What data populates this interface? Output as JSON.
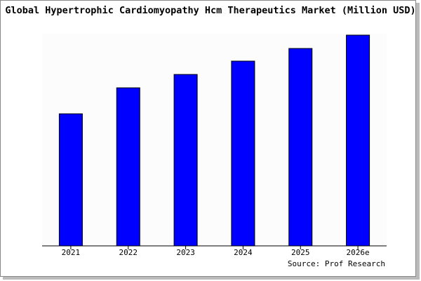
{
  "chart_data": {
    "type": "bar",
    "title": "Global Hypertrophic Cardiomyopathy Hcm Therapeutics Market (Million USD)",
    "categories": [
      "2021",
      "2022",
      "2023",
      "2024",
      "2025",
      "2026e"
    ],
    "values": [
      188,
      225,
      244,
      263,
      281,
      300
    ],
    "color": "#0000ff",
    "source": "Source: Prof Research"
  }
}
